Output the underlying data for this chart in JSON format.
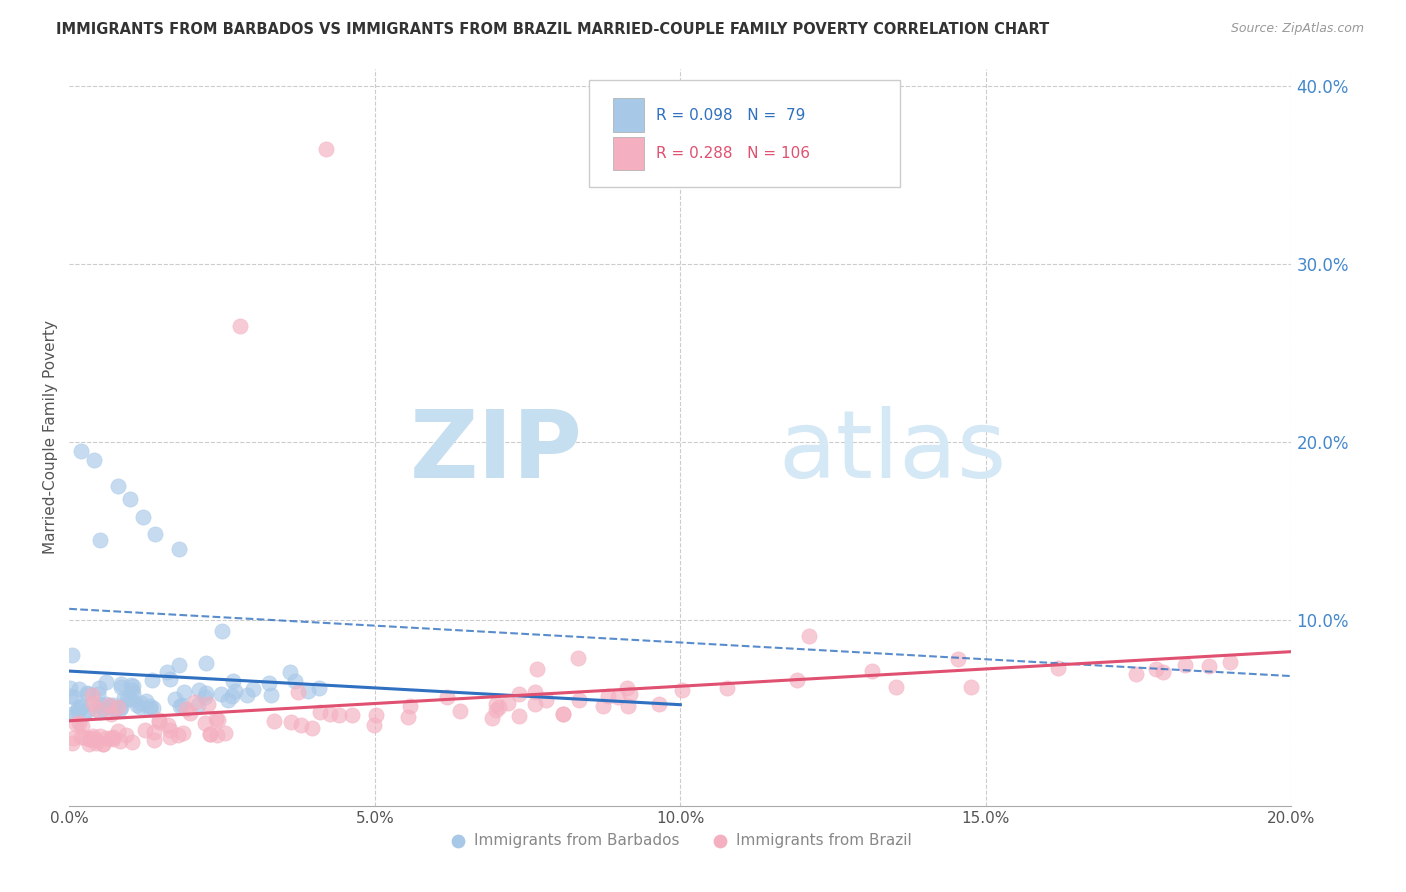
{
  "title": "IMMIGRANTS FROM BARBADOS VS IMMIGRANTS FROM BRAZIL MARRIED-COUPLE FAMILY POVERTY CORRELATION CHART",
  "source": "Source: ZipAtlas.com",
  "ylabel": "Married-Couple Family Poverty",
  "barbados_R": 0.098,
  "barbados_N": 79,
  "brazil_R": 0.288,
  "brazil_N": 106,
  "barbados_dot_color": "#a8c8e8",
  "brazil_dot_color": "#f4b0c0",
  "barbados_line_color": "#3070c0",
  "brazil_line_color": "#e05070",
  "xmin": 0.0,
  "xmax": 0.2,
  "ymin": -0.005,
  "ymax": 0.41,
  "watermark_zip": "ZIP",
  "watermark_atlas": "atlas",
  "watermark_color_zip": "#cce0f0",
  "watermark_color_atlas": "#d8eaf8",
  "right_axis_color": "#4488cc",
  "ytick_right_labels": [
    "40.0%",
    "30.0%",
    "20.0%",
    "10.0%"
  ],
  "ytick_right_values": [
    0.4,
    0.3,
    0.2,
    0.1
  ],
  "xtick_labels": [
    "0.0%",
    "",
    "",
    "",
    "20.0%"
  ],
  "xtick_values": [
    0.0,
    0.05,
    0.1,
    0.15,
    0.2
  ],
  "legend_barbados": "Immigrants from Barbados",
  "legend_brazil": "Immigrants from Brazil",
  "background_color": "#ffffff",
  "grid_color": "#cccccc",
  "title_color": "#333333",
  "source_color": "#999999"
}
